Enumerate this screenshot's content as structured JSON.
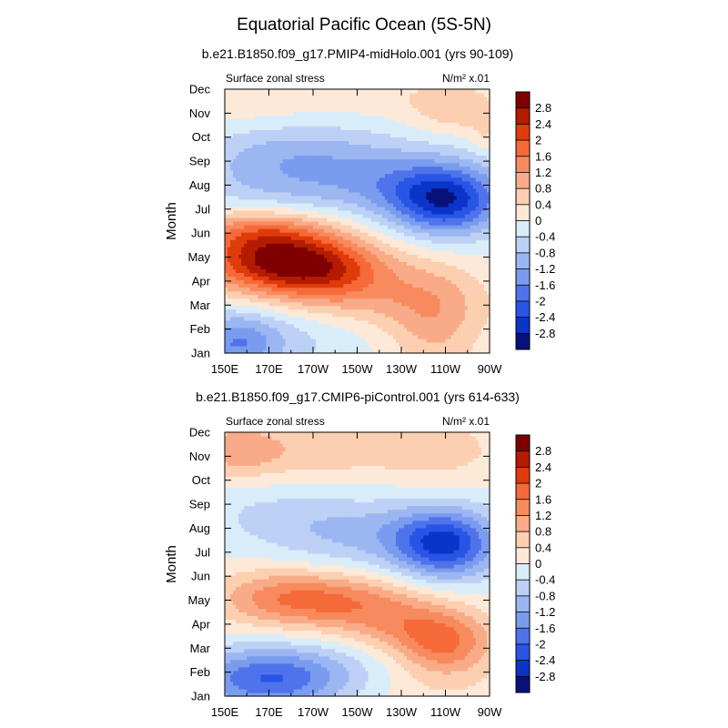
{
  "figure_title": "Equatorial Pacific Ocean (5S-5N)",
  "chart_data": [
    {
      "type": "heatmap",
      "subtitle": "b.e21.B1850.f09_g17.PMIP4-midHolo.001 (yrs 90-109)",
      "left_label": "Surface zonal stress",
      "right_label": "N/m² x.01",
      "ylabel": "Month",
      "x_ticks": [
        "150E",
        "170E",
        "170W",
        "150W",
        "130W",
        "110W",
        "90W"
      ],
      "y_ticks": [
        "Jan",
        "Feb",
        "Mar",
        "Apr",
        "May",
        "Jun",
        "Jul",
        "Aug",
        "Sep",
        "Oct",
        "Nov",
        "Dec"
      ],
      "colorbar_labels": [
        "2.8",
        "2.4",
        "2",
        "1.6",
        "1.2",
        "0.8",
        "0.4",
        "0",
        "-0.4",
        "-0.8",
        "-1.2",
        "-1.6",
        "-2",
        "-2.4",
        "-2.8"
      ],
      "features": [
        {
          "lon": 155,
          "mon": 0.4,
          "v": -1.3,
          "slon": 14,
          "smon": 0.9
        },
        {
          "lon": 180,
          "mon": 1.0,
          "v": -0.6,
          "slon": 30,
          "smon": 1.2
        },
        {
          "lon": 215,
          "mon": 2.2,
          "v": 0.8,
          "slon": 35,
          "smon": 1.0
        },
        {
          "lon": 245,
          "mon": 1.2,
          "v": 0.8,
          "slon": 15,
          "smon": 1.8
        },
        {
          "lon": 170,
          "mon": 4.0,
          "v": 2.3,
          "slon": 25,
          "smon": 1.0
        },
        {
          "lon": 195,
          "mon": 3.5,
          "v": 1.5,
          "slon": 22,
          "smon": 0.9
        },
        {
          "lon": 165,
          "mon": 5.2,
          "v": 0.8,
          "slon": 22,
          "smon": 0.6
        },
        {
          "lon": 250,
          "mon": 6.3,
          "v": -2.4,
          "slon": 18,
          "smon": 1.0
        },
        {
          "lon": 220,
          "mon": 7.2,
          "v": -1.1,
          "slon": 35,
          "smon": 1.0
        },
        {
          "lon": 165,
          "mon": 7.5,
          "v": -0.6,
          "slon": 25,
          "smon": 1.2
        },
        {
          "lon": 190,
          "mon": 8.6,
          "v": -0.5,
          "slon": 30,
          "smon": 0.8
        },
        {
          "lon": 160,
          "mon": 10.6,
          "v": 0.3,
          "slon": 20,
          "smon": 0.8
        },
        {
          "lon": 255,
          "mon": 10.2,
          "v": 0.7,
          "slon": 15,
          "smon": 0.7
        },
        {
          "lon": 215,
          "mon": 10.9,
          "v": 0.3,
          "slon": 25,
          "smon": 0.6
        },
        {
          "lon": 268,
          "mon": 9.0,
          "v": 0.4,
          "slon": 5,
          "smon": 0.5
        }
      ]
    },
    {
      "type": "heatmap",
      "subtitle": "b.e21.B1850.f09_g17.CMIP6-piControl.001 (yrs 614-633)",
      "left_label": "Surface zonal stress",
      "right_label": "N/m² x.01",
      "ylabel": "Month",
      "x_ticks": [
        "150E",
        "170E",
        "170W",
        "150W",
        "130W",
        "110W",
        "90W"
      ],
      "y_ticks": [
        "Jan",
        "Feb",
        "Mar",
        "Apr",
        "May",
        "Jun",
        "Jul",
        "Aug",
        "Sep",
        "Oct",
        "Nov",
        "Dec"
      ],
      "colorbar_labels": [
        "2.8",
        "2.4",
        "2",
        "1.6",
        "1.2",
        "0.8",
        "0.4",
        "0",
        "-0.4",
        "-0.8",
        "-1.2",
        "-1.6",
        "-2",
        "-2.4",
        "-2.8"
      ],
      "features": [
        {
          "lon": 170,
          "mon": 0.6,
          "v": -1.7,
          "slon": 25,
          "smon": 0.9
        },
        {
          "lon": 185,
          "mon": 1.3,
          "v": -0.5,
          "slon": 40,
          "smon": 0.8
        },
        {
          "lon": 245,
          "mon": 1.0,
          "v": 0.4,
          "slon": 25,
          "smon": 1.5
        },
        {
          "lon": 195,
          "mon": 4.0,
          "v": 1.5,
          "slon": 28,
          "smon": 0.8
        },
        {
          "lon": 170,
          "mon": 4.3,
          "v": 0.5,
          "slon": 20,
          "smon": 0.9
        },
        {
          "lon": 250,
          "mon": 2.2,
          "v": 1.3,
          "slon": 15,
          "smon": 0.9
        },
        {
          "lon": 230,
          "mon": 3.0,
          "v": 0.8,
          "slon": 20,
          "smon": 0.8
        },
        {
          "lon": 250,
          "mon": 6.3,
          "v": -2.2,
          "slon": 16,
          "smon": 1.0
        },
        {
          "lon": 215,
          "mon": 6.8,
          "v": -0.9,
          "slon": 35,
          "smon": 1.0
        },
        {
          "lon": 170,
          "mon": 7.8,
          "v": -0.3,
          "slon": 25,
          "smon": 0.8
        },
        {
          "lon": 155,
          "mon": 10.3,
          "v": 0.9,
          "slon": 15,
          "smon": 0.8
        },
        {
          "lon": 195,
          "mon": 10.3,
          "v": 0.6,
          "slon": 30,
          "smon": 0.9
        },
        {
          "lon": 250,
          "mon": 10.3,
          "v": 0.5,
          "slon": 20,
          "smon": 1.0
        }
      ]
    }
  ]
}
